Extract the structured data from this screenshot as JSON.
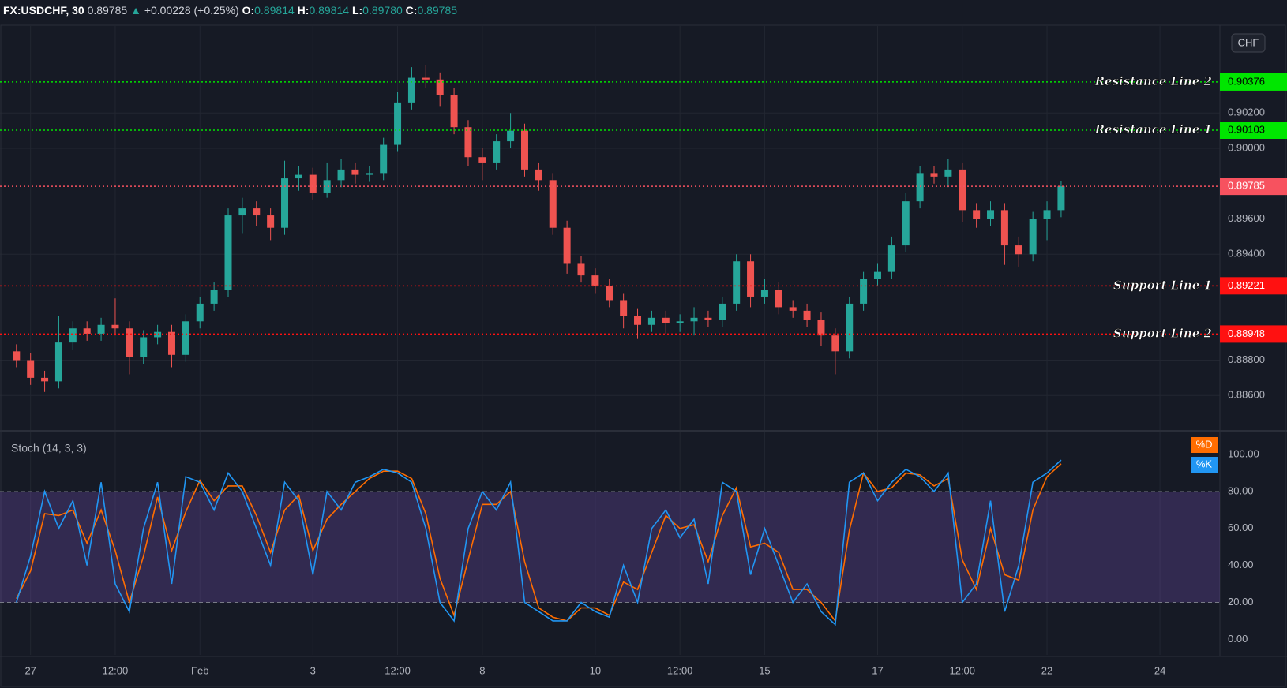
{
  "header": {
    "symbol": "FX:USDCHF, 30",
    "last": "0.89785",
    "arrow": "▲",
    "change": "+0.00228 (+0.25%)",
    "o_label": "O:",
    "o": "0.89814",
    "h_label": "H:",
    "h": "0.89814",
    "l_label": "L:",
    "l": "0.89780",
    "c_label": "C:",
    "c": "0.89785"
  },
  "currency_button": "CHF",
  "chart_data": {
    "type": "candlestick",
    "up_color": "#26a69a",
    "down_color": "#ef5350",
    "grid": true,
    "categories": [
      null,
      "27",
      null,
      null,
      null,
      null,
      null,
      "12:00",
      null,
      null,
      null,
      null,
      null,
      "Feb",
      null,
      null,
      null,
      null,
      null,
      null,
      null,
      "3",
      null,
      null,
      null,
      null,
      null,
      "12:00",
      null,
      null,
      null,
      null,
      null,
      "8",
      null,
      null,
      null,
      null,
      null,
      null,
      null,
      "10",
      null,
      null,
      null,
      null,
      null,
      "12:00",
      null,
      null,
      null,
      null,
      null,
      "15",
      null,
      null,
      null,
      null,
      null,
      null,
      null,
      "17",
      null,
      null,
      null,
      null,
      null,
      "12:00",
      null,
      null,
      null,
      null,
      null,
      "22",
      null,
      null,
      null,
      null,
      null,
      null,
      null,
      "24"
    ],
    "open": [
      0.8885,
      0.888,
      0.887,
      0.8868,
      0.889,
      0.8898,
      0.8895,
      0.89,
      0.8898,
      0.8882,
      0.8893,
      0.8896,
      0.8883,
      0.8902,
      0.8912,
      0.892,
      0.8962,
      0.8966,
      0.8962,
      0.8955,
      0.8983,
      0.8985,
      0.8975,
      0.8982,
      0.8988,
      0.8985,
      0.8986,
      0.9002,
      0.9026,
      0.904,
      0.9039,
      0.903,
      0.9012,
      0.8995,
      0.8992,
      0.9004,
      0.901,
      0.8988,
      0.8982,
      0.8955,
      0.8935,
      0.8928,
      0.8922,
      0.8914,
      0.8905,
      0.89,
      0.8904,
      0.8901,
      0.8902,
      0.8904,
      0.8903,
      0.8912,
      0.8936,
      0.8916,
      0.892,
      0.891,
      0.8908,
      0.8903,
      0.8894,
      0.8885,
      0.8912,
      0.8926,
      0.893,
      0.8945,
      0.897,
      0.8986,
      0.8984,
      0.8988,
      0.8965,
      0.896,
      0.8965,
      0.8945,
      0.894,
      0.896,
      0.8965,
      null,
      null,
      null,
      null,
      null,
      null,
      null
    ],
    "high": [
      0.8889,
      0.8884,
      0.8874,
      0.8905,
      0.8902,
      0.8902,
      0.8904,
      0.8915,
      0.8902,
      0.8897,
      0.89,
      0.89,
      0.8906,
      0.8916,
      0.8924,
      0.8966,
      0.8972,
      0.897,
      0.8966,
      0.8993,
      0.899,
      0.8989,
      0.8992,
      0.8994,
      0.8992,
      0.899,
      0.9006,
      0.9032,
      0.9046,
      0.9047,
      0.9043,
      0.9034,
      0.9016,
      0.9,
      0.9008,
      0.902,
      0.9014,
      0.8992,
      0.8986,
      0.8959,
      0.8939,
      0.8932,
      0.8926,
      0.8918,
      0.8909,
      0.8908,
      0.8908,
      0.8906,
      0.891,
      0.8908,
      0.8916,
      0.894,
      0.894,
      0.8926,
      0.8924,
      0.8914,
      0.8912,
      0.8907,
      0.8898,
      0.8916,
      0.893,
      0.8935,
      0.895,
      0.8975,
      0.899,
      0.899,
      0.8994,
      0.8992,
      0.8969,
      0.897,
      0.8969,
      0.895,
      0.8964,
      0.897,
      0.89814,
      null,
      null,
      null,
      null,
      null,
      null,
      null
    ],
    "low": [
      0.8876,
      0.8866,
      0.8862,
      0.8864,
      0.8886,
      0.8891,
      0.8891,
      0.8894,
      0.8872,
      0.8878,
      0.8889,
      0.8876,
      0.8879,
      0.8898,
      0.8908,
      0.8916,
      0.8952,
      0.8956,
      0.8948,
      0.8951,
      0.8976,
      0.8971,
      0.8972,
      0.8978,
      0.898,
      0.8981,
      0.8982,
      0.8998,
      0.9022,
      0.9034,
      0.9024,
      0.9008,
      0.899,
      0.8982,
      0.8988,
      0.9,
      0.8984,
      0.8976,
      0.8951,
      0.8929,
      0.8924,
      0.8918,
      0.891,
      0.8898,
      0.8892,
      0.8896,
      0.8895,
      0.8896,
      0.8894,
      0.8899,
      0.8899,
      0.8908,
      0.891,
      0.8912,
      0.8906,
      0.8904,
      0.8899,
      0.8888,
      0.8872,
      0.8881,
      0.8908,
      0.8922,
      0.8926,
      0.8941,
      0.8966,
      0.898,
      0.8978,
      0.8958,
      0.8955,
      0.8956,
      0.8934,
      0.8933,
      0.8936,
      0.8948,
      0.8961,
      null,
      null,
      null,
      null,
      null,
      null,
      null
    ],
    "close": [
      0.888,
      0.887,
      0.8868,
      0.889,
      0.8898,
      0.8895,
      0.89,
      0.8898,
      0.8882,
      0.8893,
      0.8896,
      0.8883,
      0.8902,
      0.8912,
      0.892,
      0.8962,
      0.8966,
      0.8962,
      0.8955,
      0.8983,
      0.8985,
      0.8975,
      0.8982,
      0.8988,
      0.8985,
      0.8986,
      0.9002,
      0.9026,
      0.904,
      0.9039,
      0.903,
      0.9012,
      0.8995,
      0.8992,
      0.9004,
      0.901,
      0.8988,
      0.8982,
      0.8955,
      0.8935,
      0.8928,
      0.8922,
      0.8914,
      0.8905,
      0.89,
      0.8904,
      0.8901,
      0.8902,
      0.8904,
      0.8903,
      0.8912,
      0.8936,
      0.8916,
      0.892,
      0.891,
      0.8908,
      0.8903,
      0.8894,
      0.8885,
      0.8912,
      0.8926,
      0.893,
      0.8945,
      0.897,
      0.8986,
      0.8984,
      0.8988,
      0.8965,
      0.896,
      0.8965,
      0.8945,
      0.894,
      0.896,
      0.8965,
      0.89785,
      null,
      null,
      null,
      null,
      null,
      null,
      null
    ],
    "ylim": [
      0.884,
      0.90693
    ],
    "yticks": [
      {
        "value": 0.886,
        "label": "0.88600"
      },
      {
        "value": 0.888,
        "label": "0.88800"
      },
      {
        "value": 0.894,
        "label": "0.89400"
      },
      {
        "value": 0.896,
        "label": "0.89600"
      },
      {
        "value": 0.9,
        "label": "0.90000"
      },
      {
        "value": 0.902,
        "label": "0.90200"
      }
    ],
    "hlines": [
      {
        "label": "Resistance Line 2",
        "value": 0.90376,
        "color": "#00e600"
      },
      {
        "label": "Resistance Line 1",
        "value": 0.90103,
        "color": "#00e600"
      },
      {
        "value": 0.89785,
        "color": "#f7525f"
      },
      {
        "label": "Support Line 1",
        "value": 0.89221,
        "color": "#ff1111"
      },
      {
        "label": "Support Line 2",
        "value": 0.88948,
        "color": "#ff1111"
      }
    ],
    "indicator": {
      "type": "line",
      "title": "Stoch (14, 3, 3)",
      "ylim": [
        -8.4,
        112
      ],
      "yticks": [
        {
          "value": 0,
          "label": "0.00"
        },
        {
          "value": 20,
          "label": "20.00"
        },
        {
          "value": 40,
          "label": "40.00"
        },
        {
          "value": 60,
          "label": "60.00"
        },
        {
          "value": 80,
          "label": "80.00"
        },
        {
          "value": 100,
          "label": "100.00"
        }
      ],
      "band": [
        20,
        80
      ],
      "band_color": "rgba(126,87,194,0.28)",
      "series": [
        {
          "name": "%D",
          "color": "#ff6d00",
          "values": [
            22,
            37,
            68,
            67,
            70,
            52,
            70,
            48,
            20,
            45,
            77,
            48,
            69,
            86,
            75,
            83,
            83,
            67,
            47,
            70,
            78,
            48,
            65,
            73,
            80,
            87,
            91,
            91,
            87,
            68,
            33,
            13,
            43,
            73,
            73,
            80,
            42,
            17,
            12,
            10,
            17,
            17,
            13,
            31,
            27,
            47,
            67,
            60,
            62,
            42,
            67,
            82,
            50,
            52,
            47,
            27,
            27,
            20,
            10,
            59,
            90,
            80,
            82,
            90,
            89,
            83,
            87,
            43,
            27,
            60,
            35,
            32,
            70,
            88,
            95,
            null,
            null,
            null,
            null,
            null,
            null,
            null
          ]
        },
        {
          "name": "%K",
          "color": "#2196f3",
          "values": [
            20,
            45,
            80,
            60,
            75,
            40,
            85,
            30,
            15,
            60,
            85,
            30,
            88,
            85,
            70,
            90,
            80,
            60,
            40,
            85,
            75,
            35,
            80,
            70,
            85,
            88,
            92,
            90,
            85,
            60,
            20,
            10,
            60,
            80,
            70,
            85,
            20,
            15,
            10,
            10,
            20,
            15,
            12,
            40,
            20,
            60,
            70,
            55,
            65,
            30,
            85,
            80,
            35,
            60,
            40,
            20,
            30,
            15,
            8,
            85,
            90,
            75,
            85,
            92,
            88,
            80,
            90,
            20,
            30,
            75,
            15,
            40,
            85,
            90,
            97,
            null,
            null,
            null,
            null,
            null,
            null,
            null
          ]
        }
      ]
    }
  }
}
